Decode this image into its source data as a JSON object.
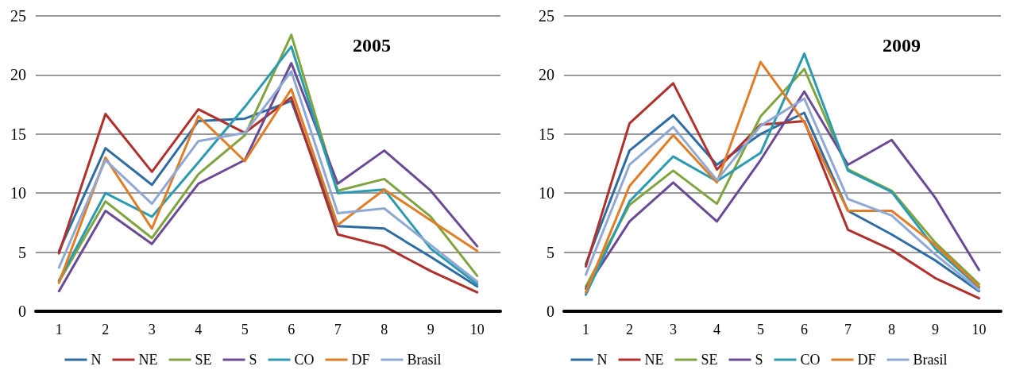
{
  "chart_data": [
    {
      "type": "line",
      "title": "2005",
      "categories": [
        "1",
        "2",
        "3",
        "4",
        "5",
        "6",
        "7",
        "8",
        "9",
        "10"
      ],
      "ylim": [
        0,
        25
      ],
      "yticks": [
        0,
        5,
        10,
        15,
        20,
        25
      ],
      "grid": "y",
      "legend": "bottom",
      "marker": "none",
      "line_style": "solid",
      "series": [
        {
          "name": "N",
          "color": "#2e6da4",
          "values": [
            5.1,
            13.8,
            10.7,
            16.1,
            16.3,
            17.8,
            7.2,
            7.0,
            4.6,
            2.1
          ]
        },
        {
          "name": "NE",
          "color": "#b0302b",
          "values": [
            4.9,
            16.7,
            11.8,
            17.1,
            15.1,
            18.1,
            6.5,
            5.5,
            3.4,
            1.6
          ]
        },
        {
          "name": "SE",
          "color": "#7fa440",
          "values": [
            2.5,
            9.3,
            6.2,
            11.6,
            14.9,
            23.4,
            10.2,
            11.2,
            8.0,
            3.0
          ]
        },
        {
          "name": "S",
          "color": "#6a4a94",
          "values": [
            1.7,
            8.5,
            5.7,
            10.8,
            12.8,
            21.0,
            10.8,
            13.6,
            10.2,
            5.5
          ]
        },
        {
          "name": "CO",
          "color": "#2a9bb0",
          "values": [
            2.6,
            10.0,
            8.0,
            12.6,
            17.3,
            22.4,
            10.0,
            10.3,
            5.3,
            2.3
          ]
        },
        {
          "name": "DF",
          "color": "#e07d26",
          "values": [
            2.4,
            13.0,
            7.0,
            16.5,
            12.7,
            18.8,
            7.3,
            10.3,
            7.7,
            5.1
          ]
        },
        {
          "name": "Brasil",
          "color": "#8fa8d4",
          "values": [
            3.7,
            12.8,
            9.1,
            14.4,
            15.1,
            20.3,
            8.3,
            8.7,
            5.6,
            2.5
          ]
        }
      ]
    },
    {
      "type": "line",
      "title": "2009",
      "categories": [
        "1",
        "2",
        "3",
        "4",
        "5",
        "6",
        "7",
        "8",
        "9",
        "10"
      ],
      "ylim": [
        0,
        25
      ],
      "yticks": [
        0,
        5,
        10,
        15,
        20,
        25
      ],
      "grid": "y",
      "legend": "bottom",
      "marker": "none",
      "line_style": "solid",
      "series": [
        {
          "name": "N",
          "color": "#2e6da4",
          "values": [
            4.0,
            13.6,
            16.6,
            12.4,
            15.0,
            16.8,
            8.5,
            6.5,
            4.3,
            1.7
          ]
        },
        {
          "name": "NE",
          "color": "#b0302b",
          "values": [
            3.8,
            15.9,
            19.3,
            12.0,
            15.8,
            16.1,
            6.9,
            5.2,
            2.8,
            1.1
          ]
        },
        {
          "name": "SE",
          "color": "#7fa440",
          "values": [
            2.1,
            9.0,
            11.9,
            9.1,
            16.5,
            20.5,
            12.0,
            10.2,
            5.8,
            2.3
          ]
        },
        {
          "name": "S",
          "color": "#6a4a94",
          "values": [
            1.9,
            7.6,
            10.9,
            7.6,
            12.8,
            18.6,
            12.4,
            14.5,
            9.6,
            3.5
          ]
        },
        {
          "name": "CO",
          "color": "#2a9bb0",
          "values": [
            1.4,
            9.3,
            13.1,
            11.0,
            13.4,
            21.8,
            11.9,
            10.1,
            5.3,
            2.0
          ]
        },
        {
          "name": "DF",
          "color": "#e07d26",
          "values": [
            1.6,
            10.6,
            14.9,
            10.9,
            21.1,
            16.0,
            8.5,
            8.5,
            5.6,
            2.1
          ]
        },
        {
          "name": "Brasil",
          "color": "#8fa8d4",
          "values": [
            3.1,
            12.4,
            15.6,
            11.1,
            15.7,
            18.0,
            9.5,
            8.1,
            4.8,
            1.8
          ]
        }
      ]
    }
  ]
}
